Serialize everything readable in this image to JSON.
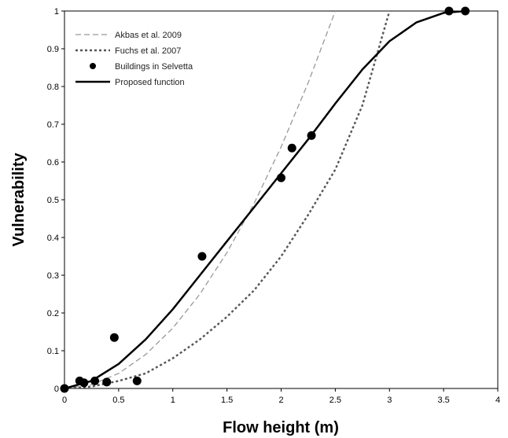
{
  "chart_data": {
    "type": "line",
    "xlabel": "Flow height (m)",
    "ylabel": "Vulnerability",
    "xlim": [
      0,
      4
    ],
    "ylim": [
      0,
      1
    ],
    "xticks": [
      "0",
      "0.5",
      "1",
      "1.5",
      "2",
      "2.5",
      "3",
      "3.5",
      "4"
    ],
    "yticks": [
      "0",
      "0.1",
      "0.2",
      "0.3",
      "0.4",
      "0.5",
      "0.6",
      "0.7",
      "0.8",
      "0.9",
      "1"
    ],
    "grid": false,
    "legend_position": "top-left",
    "series": [
      {
        "name": "Akbas et al. 2009",
        "style": "dashed",
        "color": "#999999",
        "x": [
          0,
          0.25,
          0.5,
          0.75,
          1.0,
          1.25,
          1.5,
          1.75,
          2.0,
          2.25,
          2.5
        ],
        "y": [
          0,
          0.01,
          0.04,
          0.09,
          0.16,
          0.25,
          0.36,
          0.49,
          0.64,
          0.81,
          1.0
        ]
      },
      {
        "name": "Fuchs et al. 2007",
        "style": "dotted",
        "color": "#555555",
        "x": [
          0,
          0.25,
          0.5,
          0.75,
          1.0,
          1.25,
          1.5,
          1.75,
          2.0,
          2.25,
          2.5,
          2.75,
          3.0
        ],
        "y": [
          0,
          0.005,
          0.02,
          0.04,
          0.08,
          0.13,
          0.19,
          0.26,
          0.35,
          0.46,
          0.58,
          0.75,
          1.0
        ]
      },
      {
        "name": "Buildings in Selvetta",
        "style": "markers",
        "color": "#000000",
        "x": [
          0.0,
          0.14,
          0.18,
          0.28,
          0.39,
          0.46,
          0.67,
          1.27,
          2.0,
          2.1,
          2.28,
          3.55,
          3.7
        ],
        "y": [
          0.0,
          0.02,
          0.015,
          0.02,
          0.017,
          0.135,
          0.02,
          0.35,
          0.558,
          0.637,
          0.67,
          1.0,
          1.0
        ]
      },
      {
        "name": "Proposed function",
        "style": "solid",
        "color": "#000000",
        "x": [
          0,
          0.25,
          0.5,
          0.75,
          1.0,
          1.25,
          1.5,
          1.75,
          2.0,
          2.25,
          2.5,
          2.75,
          3.0,
          3.25,
          3.5,
          3.7
        ],
        "y": [
          0,
          0.02,
          0.065,
          0.13,
          0.21,
          0.3,
          0.39,
          0.48,
          0.57,
          0.66,
          0.755,
          0.845,
          0.92,
          0.97,
          0.995,
          1.0
        ]
      }
    ]
  }
}
